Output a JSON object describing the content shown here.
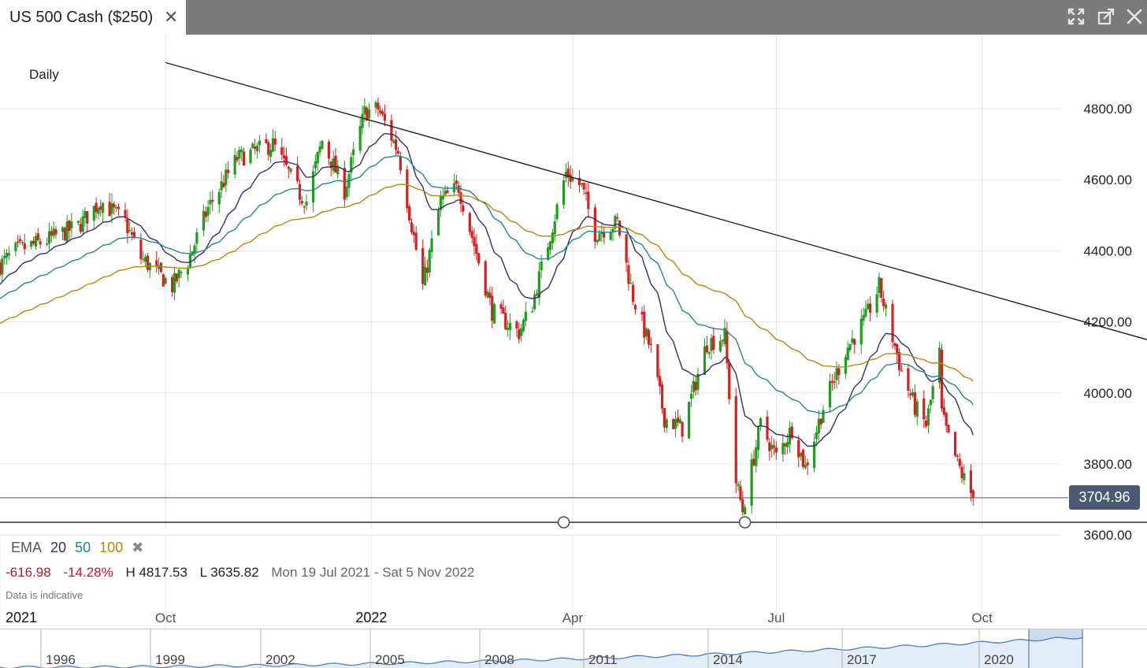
{
  "window": {
    "tab_title": "US 500 Cash ($250)",
    "tab_close_icon": "close-icon",
    "icons": [
      "expand-icon",
      "popout-icon",
      "close-icon"
    ]
  },
  "chart_header": {
    "interval": "Daily"
  },
  "colors": {
    "up": "#1f9d1f",
    "down": "#d81e1e",
    "ema20": "#3b2a6e",
    "ema50": "#1f8a8a",
    "ema100": "#b8860b",
    "price_tag_bg": "#4a5a73"
  },
  "legend": {
    "label": "EMA",
    "periods": [
      "20",
      "50",
      "100"
    ],
    "remove_icon": "close-icon"
  },
  "stats": {
    "change": "-616.98",
    "change_pct": "-14.28%",
    "high": "H 4817.53",
    "low": "L 3635.82",
    "range": "Mon 19 Jul 2021 - Sat 5 Nov 2022"
  },
  "note": "Data is indicative",
  "price_tag": "3704.96",
  "chart_data": {
    "type": "candlestick",
    "title": "US 500 Cash ($250)",
    "interval": "Daily",
    "y_ticks": [
      "4800.00",
      "4600.00",
      "4400.00",
      "4200.00",
      "4000.00",
      "3800.00",
      "3600.00"
    ],
    "x_labels": [
      {
        "label": "2021",
        "date": "2021-07-19",
        "bold": true
      },
      {
        "label": "Oct",
        "date": "2021-10-01",
        "bold": false
      },
      {
        "label": "2022",
        "date": "2022-01-01",
        "bold": true
      },
      {
        "label": "Apr",
        "date": "2022-04-01",
        "bold": false
      },
      {
        "label": "Jul",
        "date": "2022-07-01",
        "bold": false
      },
      {
        "label": "Oct",
        "date": "2022-10-01",
        "bold": false
      }
    ],
    "ylim": [
      3550,
      4980
    ],
    "xlim": [
      "2021-07-19",
      "2022-11-05"
    ],
    "last_price": 3704.96,
    "high": 4817.53,
    "low": 3635.82,
    "anchors": [
      [
        "2021-07-19",
        4360
      ],
      [
        "2021-07-26",
        4400
      ],
      [
        "2021-08-09",
        4430
      ],
      [
        "2021-08-23",
        4470
      ],
      [
        "2021-09-02",
        4540
      ],
      [
        "2021-09-13",
        4480
      ],
      [
        "2021-09-20",
        4380
      ],
      [
        "2021-10-04",
        4300
      ],
      [
        "2021-10-11",
        4370
      ],
      [
        "2021-10-20",
        4520
      ],
      [
        "2021-11-02",
        4660
      ],
      [
        "2021-11-18",
        4700
      ],
      [
        "2021-11-30",
        4560
      ],
      [
        "2021-12-03",
        4540
      ],
      [
        "2021-12-10",
        4710
      ],
      [
        "2021-12-20",
        4570
      ],
      [
        "2021-12-29",
        4790
      ],
      [
        "2022-01-04",
        4800
      ],
      [
        "2022-01-13",
        4680
      ],
      [
        "2022-01-24",
        4300
      ],
      [
        "2022-02-01",
        4540
      ],
      [
        "2022-02-09",
        4580
      ],
      [
        "2022-02-24",
        4230
      ],
      [
        "2022-03-08",
        4170
      ],
      [
        "2022-03-14",
        4250
      ],
      [
        "2022-03-29",
        4620
      ],
      [
        "2022-04-05",
        4580
      ],
      [
        "2022-04-11",
        4450
      ],
      [
        "2022-04-21",
        4480
      ],
      [
        "2022-04-28",
        4270
      ],
      [
        "2022-05-06",
        4120
      ],
      [
        "2022-05-12",
        3930
      ],
      [
        "2022-05-20",
        3900
      ],
      [
        "2022-05-31",
        4140
      ],
      [
        "2022-06-08",
        4160
      ],
      [
        "2022-06-13",
        3750
      ],
      [
        "2022-06-16",
        3670
      ],
      [
        "2022-06-24",
        3910
      ],
      [
        "2022-07-01",
        3820
      ],
      [
        "2022-07-08",
        3900
      ],
      [
        "2022-07-14",
        3790
      ],
      [
        "2022-07-22",
        3960
      ],
      [
        "2022-08-01",
        4120
      ],
      [
        "2022-08-10",
        4210
      ],
      [
        "2022-08-16",
        4300
      ],
      [
        "2022-08-26",
        4060
      ],
      [
        "2022-09-01",
        3960
      ],
      [
        "2022-09-06",
        3910
      ],
      [
        "2022-09-12",
        4110
      ],
      [
        "2022-09-13",
        3940
      ],
      [
        "2022-09-16",
        3870
      ],
      [
        "2022-09-22",
        3770
      ],
      [
        "2022-09-27",
        3705
      ]
    ],
    "annotations": [
      {
        "type": "trendline",
        "from": [
          "2021-07-19",
          4930
        ],
        "to": [
          "2022-11-05",
          4150
        ]
      },
      {
        "type": "horizontal",
        "price": 3635.82,
        "handles": [
          "2022-03-28",
          "2022-06-17"
        ]
      },
      {
        "type": "price_line",
        "price": 3704.96
      }
    ]
  },
  "navigator": {
    "years": [
      "1996",
      "1999",
      "2002",
      "2005",
      "2008",
      "2011",
      "2014",
      "2017",
      "2020"
    ]
  }
}
